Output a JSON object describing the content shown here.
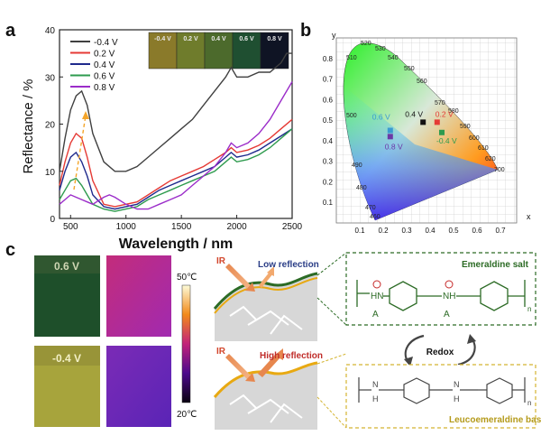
{
  "panels": {
    "a": "a",
    "b": "b",
    "c": "c"
  },
  "chart_data": [
    {
      "type": "line",
      "xlabel": "Wavelength / nm",
      "ylabel": "Reflectance / %",
      "xlim": [
        400,
        2500
      ],
      "ylim": [
        0,
        40
      ],
      "xticks": [
        "500",
        "1000",
        "1500",
        "2000",
        "2500"
      ],
      "yticks": [
        "0",
        "10",
        "20",
        "30",
        "40"
      ],
      "legend_position": "top-left",
      "inset_labels": [
        "-0.4 V",
        "0.2 V",
        "0.4 V",
        "0.6 V",
        "0.8 V"
      ],
      "inset_colors": [
        "#8a7a2a",
        "#6f7c2c",
        "#4c6a2c",
        "#1f4f31",
        "#0f1424"
      ],
      "series": [
        {
          "name": "-0.4 V",
          "color": "#404040",
          "x": [
            400,
            450,
            500,
            550,
            600,
            650,
            700,
            800,
            900,
            1000,
            1100,
            1200,
            1300,
            1400,
            1500,
            1600,
            1700,
            1800,
            1900,
            1950,
            2000,
            2100,
            2200,
            2300,
            2400,
            2450,
            2500
          ],
          "y": [
            10,
            17,
            23,
            26,
            27,
            24,
            18,
            12,
            10,
            10,
            11,
            13,
            15,
            17,
            19,
            21,
            24,
            27,
            30,
            32,
            30,
            30,
            31,
            31,
            33,
            35,
            35
          ]
        },
        {
          "name": "0.2 V",
          "color": "#e53a35",
          "x": [
            400,
            450,
            500,
            550,
            600,
            650,
            700,
            800,
            900,
            1000,
            1100,
            1200,
            1300,
            1400,
            1500,
            1600,
            1700,
            1800,
            1900,
            1950,
            2000,
            2100,
            2200,
            2300,
            2400,
            2500
          ],
          "y": [
            7,
            12,
            16,
            18,
            17,
            13,
            8,
            3,
            2.5,
            3,
            3.5,
            5,
            6.5,
            8,
            9,
            10,
            11,
            12.5,
            14,
            15,
            14,
            14.5,
            15.5,
            17,
            19,
            21
          ]
        },
        {
          "name": "0.4 V",
          "color": "#1f2a8c",
          "x": [
            400,
            450,
            500,
            550,
            600,
            650,
            700,
            800,
            900,
            1000,
            1100,
            1200,
            1300,
            1400,
            1500,
            1600,
            1700,
            1800,
            1900,
            1950,
            2000,
            2100,
            2200,
            2300,
            2400,
            2500
          ],
          "y": [
            6,
            10,
            13,
            14,
            12,
            9,
            5,
            2.5,
            2,
            2.5,
            3,
            4.5,
            6,
            7,
            8,
            9,
            10,
            11,
            13,
            14,
            13,
            13.5,
            14.5,
            16,
            17.5,
            19
          ]
        },
        {
          "name": "0.6 V",
          "color": "#2e9b4e",
          "x": [
            400,
            450,
            500,
            550,
            600,
            650,
            700,
            800,
            900,
            1000,
            1100,
            1200,
            1300,
            1400,
            1500,
            1600,
            1700,
            1800,
            1900,
            1950,
            2000,
            2100,
            2200,
            2300,
            2400,
            2500
          ],
          "y": [
            4,
            6,
            8,
            8.5,
            7,
            5,
            3,
            2,
            1.5,
            2,
            2.5,
            4,
            5,
            6,
            7,
            8,
            9,
            10,
            12,
            13,
            12,
            12.5,
            13.5,
            15,
            17,
            19
          ]
        },
        {
          "name": "0.8 V",
          "color": "#9b2cc9",
          "x": [
            400,
            450,
            500,
            550,
            600,
            650,
            700,
            800,
            850,
            900,
            1000,
            1100,
            1200,
            1300,
            1400,
            1500,
            1600,
            1700,
            1800,
            1900,
            1950,
            2000,
            2100,
            2200,
            2300,
            2400,
            2500
          ],
          "y": [
            3,
            4,
            5,
            4.5,
            4,
            3.5,
            3,
            4.5,
            5,
            4.5,
            3,
            2,
            2,
            3,
            4,
            5,
            7,
            9,
            11,
            14,
            16,
            15,
            16,
            18,
            21,
            25,
            29
          ]
        }
      ]
    },
    {
      "type": "scatter",
      "xlabel": "x",
      "ylabel": "y",
      "xlim": [
        0,
        0.8
      ],
      "ylim": [
        0,
        0.9
      ],
      "xticks": [
        "0.1",
        "0.2",
        "0.3",
        "0.4",
        "0.5",
        "0.6",
        "0.7"
      ],
      "yticks": [
        "0.1",
        "0.2",
        "0.3",
        "0.4",
        "0.5",
        "0.6",
        "0.7",
        "0.8"
      ],
      "locus_labels": [
        "520",
        "530",
        "510",
        "540",
        "550",
        "560",
        "500",
        "570",
        "580",
        "590",
        "600",
        "610",
        "620",
        "700",
        "490",
        "480",
        "470",
        "460"
      ],
      "points": [
        {
          "label": "-0.4 V",
          "x": 0.45,
          "y": 0.44,
          "color": "#2e9b4e"
        },
        {
          "label": "0.2 V",
          "x": 0.43,
          "y": 0.49,
          "color": "#e53a35"
        },
        {
          "label": "0.4 V",
          "x": 0.37,
          "y": 0.49,
          "color": "#111111"
        },
        {
          "label": "0.6 V",
          "x": 0.23,
          "y": 0.45,
          "color": "#3b9bd1"
        },
        {
          "label": "0.8 V",
          "x": 0.23,
          "y": 0.42,
          "color": "#6b39a6"
        }
      ]
    }
  ],
  "panel_c": {
    "photo_labels": [
      "0.6 V",
      "-0.4 V"
    ],
    "colorbar_top": "50℃",
    "colorbar_bottom": "20℃",
    "ir_label": "IR",
    "low_reflection": "Low reflection",
    "high_reflection": "High reflection",
    "redox": "Redox",
    "emeraldine": "Emeraldine salt",
    "leuco": "Leucoemeraldine base",
    "n": "n",
    "hn": "HN",
    "nh": "NH",
    "a_minus": "A",
    "h": "H",
    "nn": "N"
  }
}
